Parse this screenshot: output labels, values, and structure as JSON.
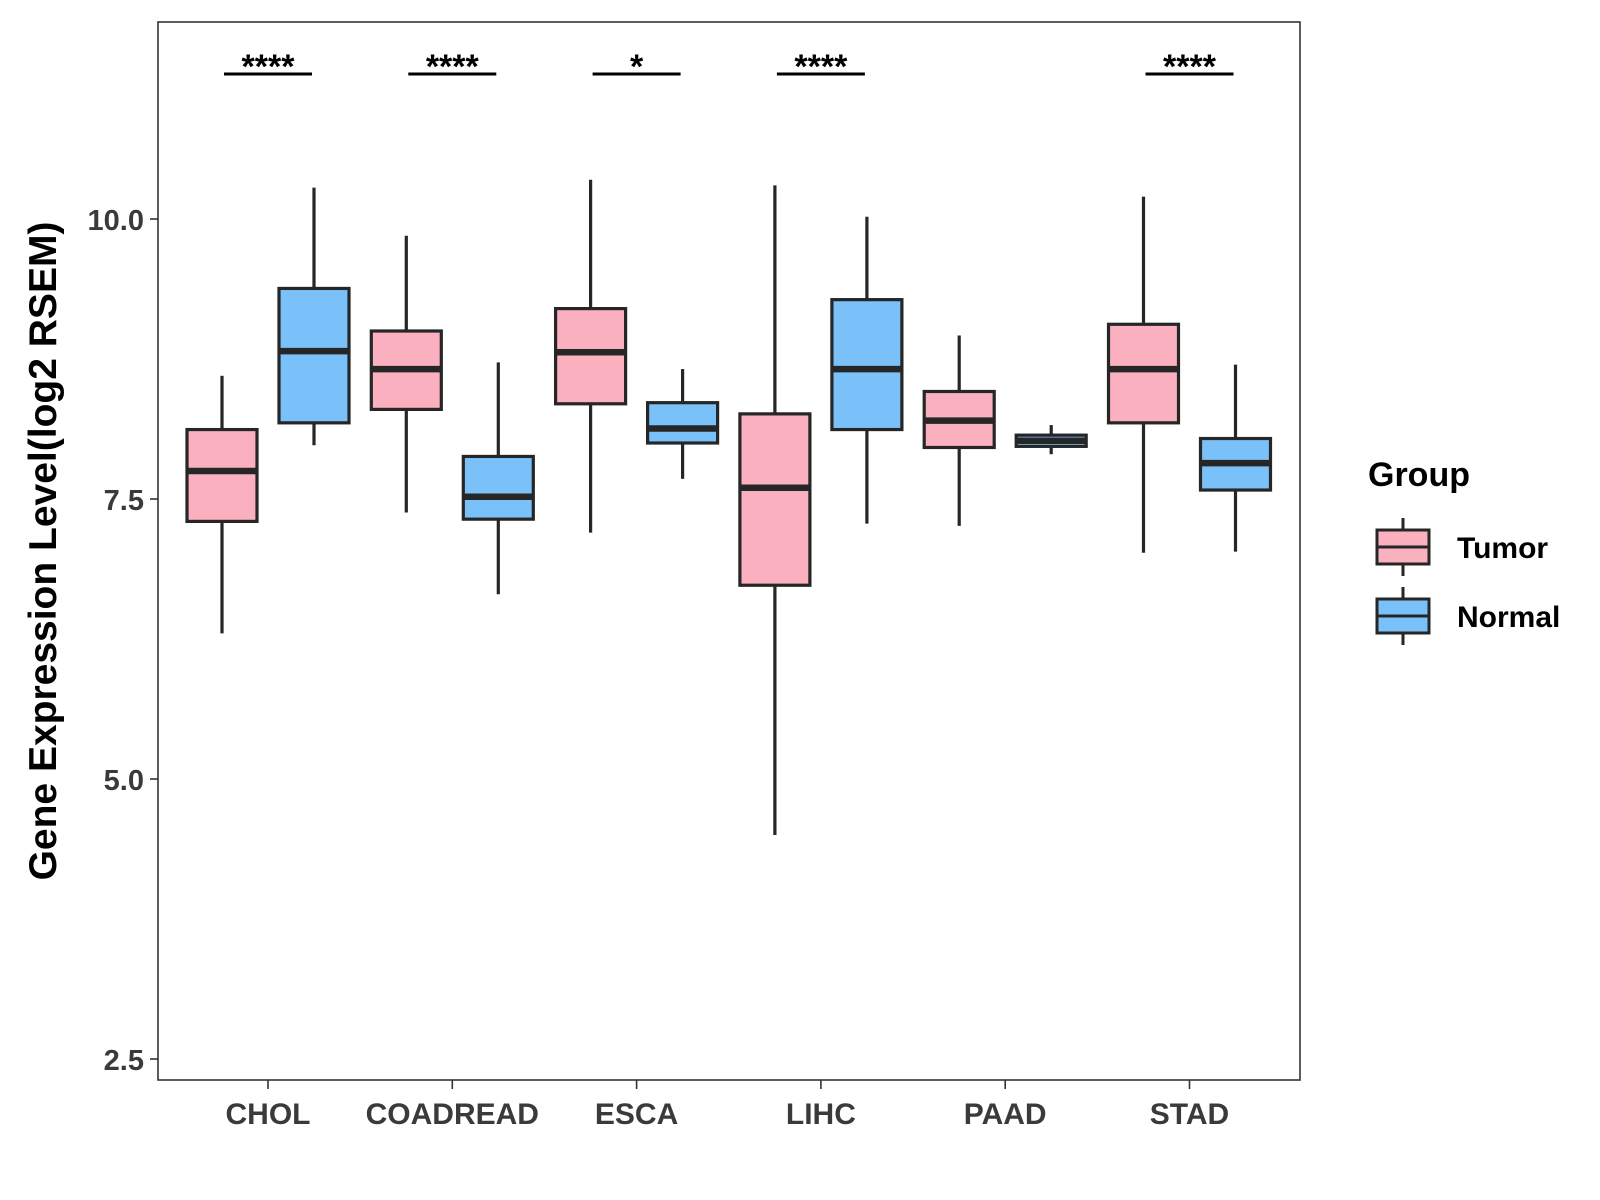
{
  "chart_data": {
    "type": "boxplot",
    "title": "",
    "xlabel": "",
    "ylabel": "Gene Expression Level(log2 RSEM)",
    "ylim": [
      2.35,
      11.8
    ],
    "yticks": [
      2.5,
      5.0,
      7.5,
      10.0
    ],
    "ytick_labels": [
      "2.5",
      "5.0",
      "7.5",
      "10.0"
    ],
    "categories": [
      "CHOL",
      "COADREAD",
      "ESCA",
      "LIHC",
      "PAAD",
      "STAD"
    ],
    "colors": {
      "Tumor": "#FBB0C0",
      "Normal": "#79C1F8",
      "stroke": "#262626"
    },
    "series": [
      {
        "name": "Tumor",
        "boxes": [
          {
            "min": 6.3,
            "q1": 7.3,
            "median": 7.75,
            "q3": 8.12,
            "max": 8.6
          },
          {
            "min": 7.38,
            "q1": 8.3,
            "median": 8.66,
            "q3": 9.0,
            "max": 9.85
          },
          {
            "min": 7.2,
            "q1": 8.35,
            "median": 8.81,
            "q3": 9.2,
            "max": 10.35
          },
          {
            "min": 4.5,
            "q1": 6.73,
            "median": 7.6,
            "q3": 8.26,
            "max": 10.3
          },
          {
            "min": 7.26,
            "q1": 7.96,
            "median": 8.2,
            "q3": 8.46,
            "max": 8.96
          },
          {
            "min": 7.02,
            "q1": 8.18,
            "median": 8.66,
            "q3": 9.06,
            "max": 10.2
          }
        ]
      },
      {
        "name": "Normal",
        "boxes": [
          {
            "min": 7.98,
            "q1": 8.18,
            "median": 8.82,
            "q3": 9.38,
            "max": 10.28
          },
          {
            "min": 6.65,
            "q1": 7.32,
            "median": 7.52,
            "q3": 7.88,
            "max": 8.72
          },
          {
            "min": 7.68,
            "q1": 8.0,
            "median": 8.13,
            "q3": 8.36,
            "max": 8.66
          },
          {
            "min": 7.28,
            "q1": 8.12,
            "median": 8.66,
            "q3": 9.28,
            "max": 10.02
          },
          {
            "min": 7.9,
            "q1": 7.97,
            "median": 8.02,
            "q3": 8.07,
            "max": 8.16
          },
          {
            "min": 7.03,
            "q1": 7.58,
            "median": 7.82,
            "q3": 8.04,
            "max": 8.7
          }
        ]
      }
    ],
    "significance": [
      "****",
      "****",
      "*",
      "****",
      "",
      "****"
    ],
    "legend": {
      "title": "Group",
      "entries": [
        "Tumor",
        "Normal"
      ],
      "position": "right"
    },
    "grid": false
  }
}
